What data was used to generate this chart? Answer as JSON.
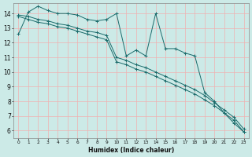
{
  "xlabel": "Humidex (Indice chaleur)",
  "ylabel": "",
  "background_color": "#cceae7",
  "grid_color_major": "#f0b0b0",
  "line_color": "#1a6b6b",
  "xlim_min": -0.5,
  "xlim_max": 23.5,
  "ylim_min": 5.5,
  "ylim_max": 14.7,
  "xticks": [
    0,
    1,
    2,
    3,
    4,
    5,
    6,
    7,
    8,
    9,
    10,
    11,
    12,
    13,
    14,
    15,
    16,
    17,
    18,
    19,
    20,
    21,
    22,
    23
  ],
  "yticks": [
    6,
    7,
    8,
    9,
    10,
    11,
    12,
    13,
    14
  ],
  "series1_x": [
    0,
    1,
    2,
    3,
    4,
    5,
    6,
    7,
    8,
    9,
    10,
    11,
    12,
    13,
    14,
    15,
    16,
    17,
    18,
    19,
    20,
    21,
    22,
    23
  ],
  "series1_y": [
    12.6,
    14.1,
    14.5,
    14.2,
    14.0,
    14.0,
    13.9,
    13.6,
    13.5,
    13.6,
    14.0,
    11.1,
    11.5,
    11.1,
    14.0,
    11.6,
    11.6,
    11.3,
    11.1,
    8.6,
    8.0,
    7.2,
    6.5,
    5.9
  ],
  "series2_x": [
    0,
    1,
    2,
    3,
    4,
    5,
    6,
    7,
    8,
    9,
    10,
    11,
    12,
    13,
    14,
    15,
    16,
    17,
    18,
    19,
    20,
    21,
    22,
    23
  ],
  "series2_y": [
    13.9,
    13.8,
    13.6,
    13.5,
    13.3,
    13.2,
    13.0,
    12.8,
    12.7,
    12.5,
    11.0,
    10.8,
    10.5,
    10.3,
    10.0,
    9.7,
    9.4,
    9.1,
    8.8,
    8.4,
    7.9,
    7.4,
    6.9,
    6.1
  ],
  "series3_x": [
    0,
    1,
    2,
    3,
    4,
    5,
    6,
    7,
    8,
    9,
    10,
    11,
    12,
    13,
    14,
    15,
    16,
    17,
    18,
    19,
    20,
    21,
    22,
    23
  ],
  "series3_y": [
    13.8,
    13.6,
    13.4,
    13.3,
    13.1,
    13.0,
    12.8,
    12.6,
    12.4,
    12.2,
    10.7,
    10.5,
    10.2,
    10.0,
    9.7,
    9.4,
    9.1,
    8.8,
    8.5,
    8.1,
    7.7,
    7.2,
    6.7,
    5.9
  ]
}
